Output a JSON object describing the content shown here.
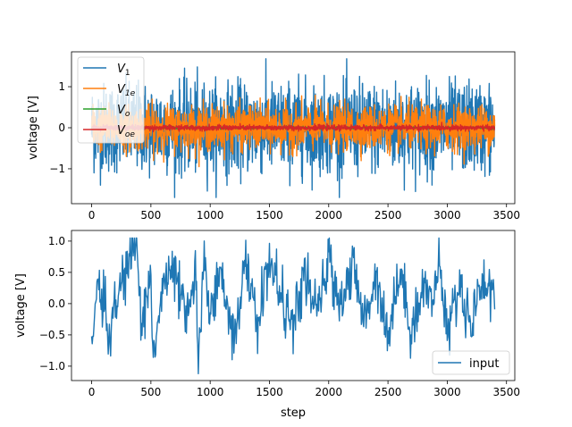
{
  "chart_data": [
    {
      "type": "line",
      "ylabel": "voltage [V]",
      "xlabel": "",
      "xlim": [
        -170,
        3570
      ],
      "ylim": [
        -1.85,
        1.85
      ],
      "xticks": [
        0,
        500,
        1000,
        1500,
        2000,
        2500,
        3000,
        3500
      ],
      "yticks": [
        -1,
        0,
        1
      ],
      "ytick_labels": [
        "−1",
        "0",
        "1"
      ],
      "legend": {
        "placement": "upper-left"
      },
      "series": [
        {
          "name": "V1",
          "base": "V",
          "sub": "1",
          "color": "#1f77b4",
          "x_range": [
            0,
            3400
          ],
          "amplitude_range": [
            -1.7,
            1.68
          ],
          "typical_range": [
            -1.2,
            1.2
          ]
        },
        {
          "name": "V1e",
          "base": "V",
          "sub": "1e",
          "color": "#ff7f0e",
          "x_range": [
            0,
            3400
          ],
          "amplitude_range": [
            -0.95,
            0.95
          ],
          "typical_range": [
            -0.6,
            0.6
          ]
        },
        {
          "name": "Vo",
          "base": "V",
          "sub": "o",
          "color": "#2ca02c",
          "x_range": [
            0,
            3400
          ],
          "amplitude_range": [
            -0.05,
            0.05
          ],
          "typical_range": [
            -0.03,
            0.03
          ]
        },
        {
          "name": "Voe",
          "base": "V",
          "sub": "oe",
          "color": "#d62728",
          "x_range": [
            0,
            3400
          ],
          "amplitude_range": [
            -0.13,
            0.13
          ],
          "typical_range": [
            -0.07,
            0.07
          ]
        }
      ]
    },
    {
      "type": "line",
      "ylabel": "voltage [V]",
      "xlabel": "step",
      "xlim": [
        -170,
        3570
      ],
      "ylim": [
        -1.23,
        1.17
      ],
      "xticks": [
        0,
        500,
        1000,
        1500,
        2000,
        2500,
        3000,
        3500
      ],
      "yticks": [
        -1.0,
        -0.5,
        0.0,
        0.5,
        1.0
      ],
      "ytick_labels": [
        "−1.0",
        "−0.5",
        "0.0",
        "0.5",
        "1.0"
      ],
      "legend": {
        "placement": "lower-right"
      },
      "series": [
        {
          "name": "input",
          "color": "#1f77b4",
          "x": [
            0,
            50,
            150,
            250,
            380,
            420,
            500,
            520,
            600,
            700,
            800,
            880,
            900,
            950,
            1000,
            1100,
            1200,
            1300,
            1400,
            1500,
            1600,
            1700,
            1800,
            1900,
            2000,
            2100,
            2200,
            2300,
            2400,
            2500,
            2600,
            2700,
            2800,
            2900,
            2930,
            3000,
            3100,
            3200,
            3300,
            3400
          ],
          "y": [
            -0.95,
            0.45,
            -0.5,
            0.3,
            1.05,
            -0.4,
            0.5,
            -0.95,
            0.3,
            0.5,
            -0.3,
            0.5,
            -1.12,
            0.6,
            0.0,
            0.4,
            -0.5,
            0.6,
            -0.3,
            0.7,
            0.1,
            -0.4,
            0.5,
            -0.2,
            0.7,
            0.0,
            0.6,
            -0.3,
            0.5,
            -0.5,
            0.5,
            -0.4,
            0.3,
            0.0,
            0.82,
            -0.5,
            0.3,
            -0.3,
            0.4,
            0.1
          ]
        }
      ]
    }
  ],
  "xtick_labels": [
    "0",
    "500",
    "1000",
    "1500",
    "2000",
    "2500",
    "3000",
    "3500"
  ]
}
